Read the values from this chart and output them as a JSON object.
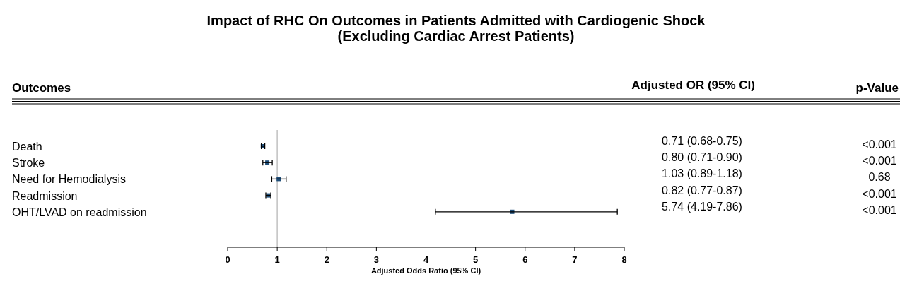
{
  "chart_data": {
    "type": "scatter",
    "orientation": "horizontal",
    "title": "Impact of RHC On Outcomes in Patients Admitted with Cardiogenic Shock\n(Excluding Cardiac Arrest Patients)",
    "ylabel": "Outcomes",
    "xlabel": "Adjusted Odds Ratio (95% CI)",
    "categories": [
      "Death",
      "Stroke",
      "Need for Hemodialysis",
      "Readmission",
      "OHT/LVAD on readmission"
    ],
    "values": [
      0.71,
      0.8,
      1.03,
      0.82,
      5.74
    ],
    "errors": [
      [
        0.68,
        0.75
      ],
      [
        0.71,
        0.9
      ],
      [
        0.89,
        1.18
      ],
      [
        0.77,
        0.87
      ],
      [
        4.19,
        7.86
      ]
    ],
    "value_labels": [
      "0.71 (0.68-0.75)",
      "0.80 (0.71-0.90)",
      "1.03 (0.89-1.18)",
      "0.82 (0.77-0.87)",
      "5.74 (4.19-7.86)"
    ],
    "color": "#1f4e79",
    "marker": "square",
    "xlim": [
      0,
      8
    ],
    "xticks": [
      0,
      1,
      2,
      3,
      4,
      5,
      6,
      7,
      8
    ],
    "ref_lines": [
      {
        "axis": "x",
        "value": 1,
        "color": "#c0c0c0"
      }
    ],
    "annotations": [
      "Adjusted OR (95% CI)",
      "p-Value",
      "<0.001",
      "<0.001",
      "0.68",
      "<0.001",
      "<0.001"
    ]
  }
}
